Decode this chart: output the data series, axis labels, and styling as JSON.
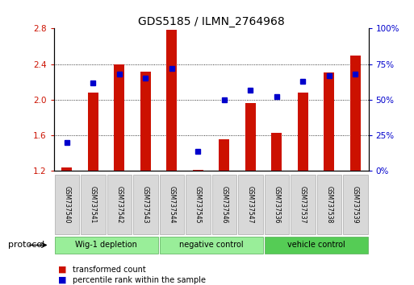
{
  "title": "GDS5185 / ILMN_2764968",
  "samples": [
    "GSM737540",
    "GSM737541",
    "GSM737542",
    "GSM737543",
    "GSM737544",
    "GSM737545",
    "GSM737546",
    "GSM737547",
    "GSM737536",
    "GSM737537",
    "GSM737538",
    "GSM737539"
  ],
  "red_values": [
    1.24,
    2.08,
    2.4,
    2.32,
    2.79,
    1.21,
    1.56,
    1.96,
    1.63,
    2.08,
    2.31,
    2.5
  ],
  "blue_values": [
    20,
    62,
    68,
    65,
    72,
    14,
    50,
    57,
    52,
    63,
    67,
    68
  ],
  "ylim_left": [
    1.2,
    2.8
  ],
  "ylim_right": [
    0,
    100
  ],
  "yticks_left": [
    1.2,
    1.6,
    2.0,
    2.4,
    2.8
  ],
  "yticks_right": [
    0,
    25,
    50,
    75,
    100
  ],
  "ytick_labels_right": [
    "0%",
    "25%",
    "50%",
    "75%",
    "100%"
  ],
  "groups": [
    {
      "label": "Wig-1 depletion",
      "start": 0,
      "end": 4
    },
    {
      "label": "negative control",
      "start": 4,
      "end": 8
    },
    {
      "label": "vehicle control",
      "start": 8,
      "end": 12
    }
  ],
  "group_colors": [
    "#aaffaa",
    "#aaffaa",
    "#66dd66"
  ],
  "protocol_label": "protocol",
  "legend_red": "transformed count",
  "legend_blue": "percentile rank within the sample",
  "bar_color": "#cc1100",
  "dot_color": "#0000cc",
  "bar_width": 0.4,
  "baseline": 1.2,
  "tick_label_color_left": "#cc1100",
  "tick_label_color_right": "#0000cc",
  "bg_color": "#ffffff"
}
